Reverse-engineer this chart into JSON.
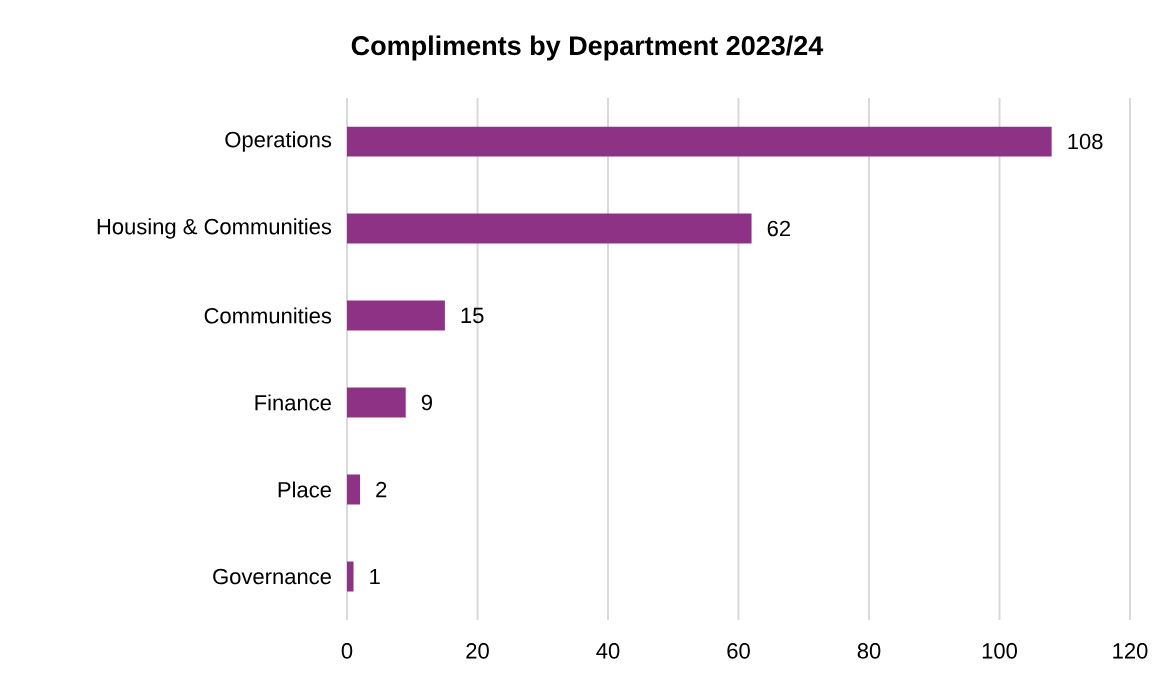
{
  "chart_data": {
    "type": "bar",
    "orientation": "horizontal",
    "title": "Compliments by Department 2023/24",
    "categories": [
      "Operations",
      "Housing & Communities",
      "Communities",
      "Finance",
      "Place",
      "Governance"
    ],
    "values": [
      108,
      62,
      15,
      9,
      2,
      1
    ],
    "color": "#8e3286",
    "xlim": [
      0,
      120
    ],
    "xticks": [
      0,
      20,
      40,
      60,
      80,
      100,
      120
    ],
    "grid": "x",
    "data_labels": true
  }
}
